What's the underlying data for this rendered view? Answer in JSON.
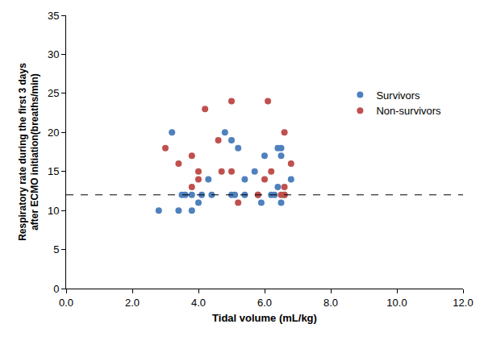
{
  "chart_data": {
    "type": "scatter",
    "x_label": "Tidal volume (mL/kg)",
    "y_label": "Respiratory rate during the first 3 days\nafter ECMO initiation(breaths/min)",
    "xlim": [
      0,
      12
    ],
    "xticks": [
      {
        "value": 0,
        "label": "0.0"
      },
      {
        "value": 2,
        "label": "2.0"
      },
      {
        "value": 4,
        "label": "4.0"
      },
      {
        "value": 6,
        "label": "6.0"
      },
      {
        "value": 8,
        "label": "8.0"
      },
      {
        "value": 10,
        "label": "10.0"
      },
      {
        "value": 12,
        "label": "12.0"
      }
    ],
    "ylim": [
      0,
      35
    ],
    "yticks": [
      0,
      5,
      10,
      15,
      20,
      25,
      30,
      35
    ],
    "grid": false,
    "legend": "right",
    "reference_lines": [
      {
        "y": 12,
        "line_style": "dashed"
      }
    ],
    "series": [
      {
        "name": "Survivors",
        "color": "#4f81bd",
        "marker": "circle",
        "x": [
          2.8,
          3.2,
          3.4,
          3.5,
          3.6,
          3.8,
          3.8,
          4.0,
          4.1,
          4.3,
          4.4,
          4.8,
          5.0,
          5.0,
          5.1,
          5.2,
          5.4,
          5.4,
          5.7,
          5.8,
          5.9,
          6.0,
          6.2,
          6.3,
          6.4,
          6.4,
          6.5,
          6.5,
          6.5,
          6.6,
          6.8
        ],
        "values": [
          10,
          20,
          10,
          12,
          12,
          10,
          12,
          11,
          12,
          14,
          12,
          20,
          19,
          12,
          12,
          18,
          12,
          14,
          15,
          12,
          11,
          17,
          12,
          12,
          13,
          18,
          18,
          17,
          11,
          12,
          14
        ]
      },
      {
        "name": "Non-survivors",
        "color": "#c0504d",
        "marker": "circle",
        "x": [
          3.0,
          3.4,
          3.8,
          3.8,
          4.0,
          4.0,
          4.2,
          4.6,
          4.7,
          5.0,
          5.0,
          5.2,
          5.8,
          6.0,
          6.1,
          6.2,
          6.5,
          6.6,
          6.6,
          6.6,
          6.8
        ],
        "values": [
          18,
          16,
          17,
          13,
          15,
          14,
          23,
          19,
          15,
          24,
          15,
          11,
          12,
          14,
          24,
          15,
          12,
          20,
          13,
          12,
          16
        ]
      }
    ]
  }
}
